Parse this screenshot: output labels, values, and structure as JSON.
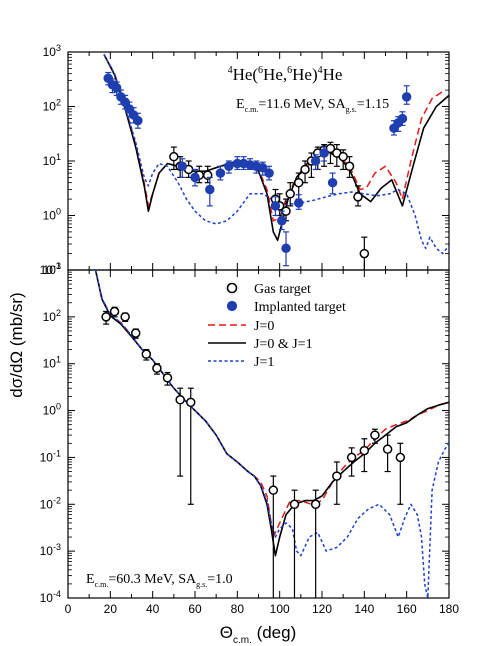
{
  "chart_data": [
    {
      "type": "line",
      "panel": "top",
      "title": {
        "text": "He(He,He)He",
        "parts": [
          {
            "t": "4",
            "sup": true
          },
          {
            "t": "He("
          },
          {
            "t": "6",
            "sup": true
          },
          {
            "t": "He,"
          },
          {
            "t": "6",
            "sup": true
          },
          {
            "t": "He)"
          },
          {
            "t": "4",
            "sup": true
          },
          {
            "t": "He"
          }
        ]
      },
      "annotation": {
        "text": "E c.m. =11.6 MeV, SA g.s. =1.15",
        "parts": [
          {
            "t": "E"
          },
          {
            "t": "c.m.",
            "sub": true
          },
          {
            "t": "=11.6 MeV, SA"
          },
          {
            "t": "g.s.",
            "sub": true
          },
          {
            "t": "=1.15"
          }
        ]
      },
      "xlim": [
        0,
        180
      ],
      "ylim": [
        0.1,
        1000
      ],
      "yscale": "log",
      "series": [
        {
          "name": "J=0",
          "style": "dashed",
          "color": "#e31a1c",
          "x": [
            17,
            22,
            27,
            32,
            36,
            38,
            40,
            43,
            47,
            52,
            58,
            65,
            72,
            80,
            86,
            90,
            94,
            97,
            100,
            103,
            108,
            113,
            118,
            123,
            128,
            133,
            138,
            141,
            145,
            150,
            155,
            158,
            162,
            167,
            172,
            178
          ],
          "y": [
            900,
            400,
            100,
            20,
            4,
            1.5,
            2.5,
            6,
            9,
            8,
            6.5,
            6.5,
            8,
            10,
            9,
            7,
            3,
            0.8,
            0.9,
            2,
            5,
            8,
            12,
            14,
            12,
            8,
            3,
            3.2,
            6,
            8,
            4,
            2,
            10,
            60,
            140,
            200
          ]
        },
        {
          "name": "J=0 & J=1",
          "style": "solid",
          "color": "#000000",
          "x": [
            17,
            22,
            27,
            32,
            36,
            38,
            40,
            43,
            47,
            52,
            58,
            65,
            72,
            80,
            86,
            90,
            94,
            97,
            99,
            101,
            104,
            108,
            113,
            118,
            123,
            128,
            133,
            138,
            143,
            148,
            153,
            158,
            163,
            168,
            174,
            180
          ],
          "y": [
            900,
            380,
            90,
            18,
            3.5,
            1.2,
            2.5,
            6,
            9,
            8,
            6.5,
            6.5,
            8,
            10,
            9,
            6.5,
            2.5,
            0.5,
            0.35,
            0.7,
            2,
            5,
            9,
            13,
            14.5,
            12,
            7,
            2.5,
            1.8,
            3.2,
            4.5,
            1.5,
            8,
            40,
            100,
            160
          ]
        },
        {
          "name": "J=1",
          "style": "dotted",
          "color": "#1f3fcc",
          "x": [
            17,
            22,
            27,
            32,
            36,
            38,
            40,
            43,
            47,
            52,
            56,
            60,
            65,
            70,
            75,
            80,
            86,
            92,
            98,
            104,
            110,
            116,
            122,
            128,
            134,
            140,
            146,
            152,
            156,
            160,
            164,
            167,
            169,
            171,
            174,
            177,
            180
          ],
          "y": [
            900,
            400,
            100,
            22,
            5,
            3.5,
            6,
            9,
            8,
            4,
            2,
            1.2,
            0.8,
            0.7,
            0.8,
            1.2,
            2.5,
            2.5,
            1.8,
            1.6,
            1.7,
            1.9,
            2.2,
            2.5,
            2.7,
            2.5,
            2.3,
            2.5,
            3,
            2.5,
            1,
            0.35,
            0.25,
            0.4,
            0.25,
            0.2,
            0.28
          ]
        }
      ],
      "points": [
        {
          "name": "Gas target",
          "marker": "open-circle",
          "x": [
            50,
            53,
            57,
            62,
            66,
            98,
            100,
            103,
            105,
            109,
            112,
            115,
            118,
            121,
            124,
            127,
            130,
            133,
            137,
            140
          ],
          "y": [
            12,
            8,
            7,
            5.5,
            5.5,
            2,
            1.5,
            1.2,
            2.5,
            4,
            7,
            10,
            14,
            16,
            17,
            14,
            12,
            8,
            2.2,
            0.2
          ],
          "err_lo": [
            7,
            5,
            5,
            4,
            4,
            1.4,
            1,
            0.8,
            1.5,
            2,
            4,
            5,
            7,
            8,
            9,
            8,
            7,
            5,
            1.5,
            0.1
          ],
          "err_hi": [
            18,
            12,
            10,
            8,
            8,
            3,
            2.5,
            2,
            4,
            6,
            10,
            14,
            18,
            20,
            22,
            20,
            16,
            12,
            3.5,
            0.4
          ]
        },
        {
          "name": "Implanted target",
          "marker": "filled-circle",
          "x": [
            19,
            21,
            23,
            25,
            27,
            29,
            31,
            33,
            54,
            60,
            67,
            72,
            76,
            80,
            83,
            86,
            89,
            92,
            95,
            98,
            101,
            103,
            109,
            117,
            121,
            125,
            154,
            156,
            158,
            160
          ],
          "y": [
            330,
            250,
            220,
            150,
            120,
            90,
            70,
            55,
            8,
            5,
            3,
            6,
            8,
            9,
            9,
            8.5,
            8,
            7.5,
            6,
            1.5,
            0.8,
            0.25,
            1.7,
            10,
            14,
            4,
            40,
            50,
            60,
            150
          ],
          "err_lo": [
            250,
            180,
            160,
            110,
            90,
            65,
            50,
            40,
            5,
            3.5,
            1.5,
            4.5,
            6,
            7,
            7,
            7,
            6,
            5.5,
            4.5,
            1,
            0.55,
            0.12,
            1.3,
            7,
            10,
            2.5,
            30,
            35,
            45,
            110
          ],
          "err_hi": [
            420,
            320,
            280,
            200,
            160,
            120,
            95,
            75,
            11,
            7,
            5,
            8,
            10,
            12,
            12,
            11,
            10,
            9.5,
            8,
            2.2,
            1.2,
            0.5,
            2.4,
            13,
            18,
            6,
            55,
            65,
            80,
            240
          ]
        }
      ]
    },
    {
      "type": "line",
      "panel": "bottom",
      "annotation": {
        "text": "E c.m. =60.3 MeV, SA g.s. =1.0",
        "parts": [
          {
            "t": "E"
          },
          {
            "t": "c.m.",
            "sub": true
          },
          {
            "t": "=60.3 MeV, SA"
          },
          {
            "t": "g.s.",
            "sub": true
          },
          {
            "t": "=1.0"
          }
        ]
      },
      "xlim": [
        0,
        180
      ],
      "ylim": [
        0.0001,
        1000
      ],
      "yscale": "log",
      "series": [
        {
          "name": "J=0",
          "style": "dashed",
          "color": "#e31a1c",
          "x": [
            13,
            16,
            20,
            25,
            30,
            35,
            40,
            45,
            50,
            55,
            60,
            65,
            70,
            75,
            80,
            85,
            88,
            91,
            94,
            97,
            100,
            105,
            110,
            115,
            120,
            125,
            130,
            135,
            140,
            145,
            150,
            155,
            160,
            165,
            170,
            175,
            180
          ],
          "y": [
            1000,
            250,
            110,
            75,
            40,
            20,
            12,
            6,
            3,
            1.7,
            1,
            0.6,
            0.3,
            0.12,
            0.08,
            0.05,
            0.04,
            0.03,
            0.015,
            0.002,
            0.004,
            0.012,
            0.012,
            0.01,
            0.012,
            0.03,
            0.06,
            0.1,
            0.14,
            0.25,
            0.4,
            0.5,
            0.6,
            0.8,
            1.0,
            1.3,
            1.5
          ]
        },
        {
          "name": "J=0 & J=1",
          "style": "solid",
          "color": "#000000",
          "x": [
            13,
            16,
            20,
            25,
            30,
            35,
            40,
            45,
            50,
            55,
            60,
            65,
            70,
            75,
            80,
            85,
            88,
            91,
            94,
            96,
            98,
            100,
            103,
            107,
            112,
            116,
            120,
            125,
            130,
            135,
            140,
            145,
            150,
            155,
            160,
            165,
            170,
            175,
            180
          ],
          "y": [
            1000,
            240,
            105,
            70,
            38,
            20,
            12,
            6,
            3,
            1.7,
            1,
            0.6,
            0.3,
            0.12,
            0.08,
            0.05,
            0.04,
            0.025,
            0.01,
            0.003,
            0.0008,
            0.002,
            0.006,
            0.01,
            0.012,
            0.012,
            0.015,
            0.03,
            0.05,
            0.08,
            0.12,
            0.2,
            0.3,
            0.45,
            0.55,
            0.8,
            1.1,
            1.3,
            1.5
          ]
        },
        {
          "name": "J=1",
          "style": "dotted",
          "color": "#1f3fcc",
          "x": [
            13,
            16,
            20,
            25,
            30,
            35,
            40,
            45,
            50,
            55,
            60,
            65,
            70,
            75,
            80,
            85,
            88,
            91,
            94,
            96,
            98,
            100,
            103,
            106,
            108,
            110,
            114,
            118,
            122,
            127,
            132,
            137,
            142,
            147,
            152,
            156,
            159,
            162,
            165,
            167,
            168.5,
            170,
            172,
            175,
            178,
            180
          ],
          "y": [
            1000,
            250,
            110,
            75,
            40,
            20,
            12,
            6,
            3,
            1.7,
            1,
            0.6,
            0.3,
            0.12,
            0.08,
            0.05,
            0.04,
            0.025,
            0.012,
            0.004,
            0.002,
            0.003,
            0.004,
            0.003,
            0.001,
            0.0008,
            0.002,
            0.0025,
            0.001,
            0.0012,
            0.002,
            0.005,
            0.008,
            0.01,
            0.006,
            0.002,
            0.005,
            0.01,
            0.006,
            0.002,
            0.0002,
            0.0001,
            0.02,
            0.08,
            0.15,
            0.2
          ]
        }
      ],
      "points": [
        {
          "name": "Gas target",
          "marker": "open-circle",
          "x": [
            18,
            22,
            27,
            32,
            37,
            42,
            47,
            53,
            58,
            97,
            107,
            117,
            127,
            134,
            140,
            145,
            151,
            157
          ],
          "y": [
            100,
            130,
            100,
            45,
            16,
            8,
            5,
            1.7,
            1.5,
            0.02,
            0.01,
            0.01,
            0.04,
            0.1,
            0.14,
            0.3,
            0.15,
            0.1
          ],
          "err_lo": [
            70,
            100,
            80,
            35,
            12,
            6,
            3.5,
            0.04,
            0.01,
            0.0001,
            0.0001,
            0.0001,
            0.01,
            0.04,
            0.05,
            0.2,
            0.05,
            0.01
          ],
          "err_hi": [
            130,
            160,
            120,
            55,
            20,
            10,
            6.5,
            3,
            3,
            0.04,
            0.02,
            0.02,
            0.08,
            0.16,
            0.25,
            0.4,
            0.3,
            0.2
          ]
        }
      ]
    }
  ],
  "legend": {
    "gas_target": "Gas target",
    "implanted_target": "Implanted target",
    "j0": "J=0",
    "j0_j1": "J=0 & J=1",
    "j1": "J=1"
  },
  "axes": {
    "xlabel": {
      "text": "Θc.m. (deg)",
      "parts": [
        {
          "t": "Θ"
        },
        {
          "t": "c.m.",
          "sub": true
        },
        {
          "t": " (deg)"
        }
      ]
    },
    "ylabel": "dσ/dΩ  (mb/sr)",
    "x_ticks": [
      "0",
      "20",
      "40",
      "60",
      "80",
      "100",
      "120",
      "140",
      "160",
      "180"
    ],
    "top_y_ticks": [
      {
        "base": "10",
        "exp": "-1"
      },
      {
        "base": "10",
        "exp": "0"
      },
      {
        "base": "10",
        "exp": "1"
      },
      {
        "base": "10",
        "exp": "2"
      },
      {
        "base": "10",
        "exp": "3"
      }
    ],
    "bottom_y_ticks": [
      {
        "base": "10",
        "exp": "-4"
      },
      {
        "base": "10",
        "exp": "-3"
      },
      {
        "base": "10",
        "exp": "-2"
      },
      {
        "base": "10",
        "exp": "-1"
      },
      {
        "base": "10",
        "exp": "0"
      },
      {
        "base": "10",
        "exp": "1"
      },
      {
        "base": "10",
        "exp": "2"
      },
      {
        "base": "10",
        "exp": "3"
      }
    ]
  },
  "colors": {
    "j0": "#e31a1c",
    "j0_j1": "#000000",
    "j1": "#1f3fcc",
    "implanted": "#1f3fb0"
  }
}
